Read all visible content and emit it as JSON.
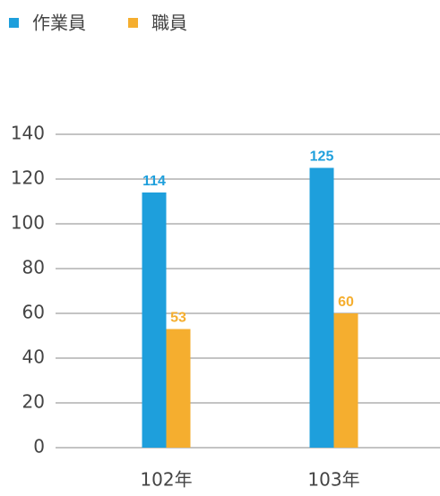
{
  "chart_data": {
    "type": "bar",
    "categories": [
      "102年",
      "103年"
    ],
    "series": [
      {
        "name": "作業員",
        "color": "#1e9fdc",
        "values": [
          114,
          125
        ]
      },
      {
        "name": "職員",
        "color": "#f5ae2f",
        "values": [
          53,
          60
        ]
      }
    ],
    "ylim": [
      0,
      140
    ],
    "yticks": [
      0,
      20,
      40,
      60,
      80,
      100,
      120,
      140
    ],
    "grid": true,
    "legend": "top-left"
  }
}
